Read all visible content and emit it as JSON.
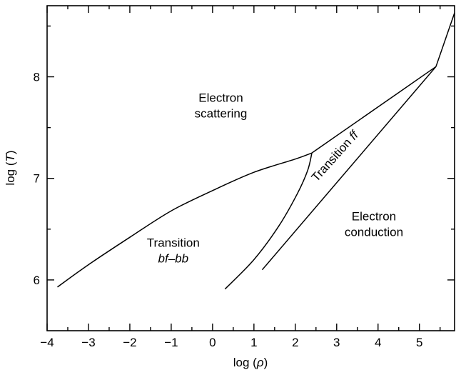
{
  "chart_data": {
    "type": "line",
    "title": "",
    "x_axis": {
      "label_prefix": "log (",
      "label_symbol": "ρ",
      "label_suffix": ")",
      "range": [
        -4,
        5.85
      ],
      "ticks": [
        -4,
        -3,
        -2,
        -1,
        0,
        1,
        2,
        3,
        4,
        5
      ],
      "tick_labels": [
        "−4",
        "−3",
        "−2",
        "−1",
        "0",
        "1",
        "2",
        "3",
        "4",
        "5"
      ],
      "minor_ticks": [
        -3.5,
        -2.5,
        -1.5,
        -0.5,
        0.5,
        1.5,
        2.5,
        3.5,
        4.5,
        5.5
      ]
    },
    "y_axis": {
      "label_prefix": "log (",
      "label_symbol": "T",
      "label_suffix": ")",
      "range": [
        5.5,
        8.7
      ],
      "ticks": [
        6,
        7,
        8
      ],
      "tick_labels": [
        "6",
        "7",
        "8"
      ],
      "minor_ticks": [
        6.5,
        7.5,
        8.5
      ]
    },
    "grid": false,
    "series": [
      {
        "x": [
          -3.75,
          -3.0,
          -2.0,
          -1.0,
          0.0,
          1.0,
          2.0,
          2.4
        ],
        "y": [
          5.93,
          6.15,
          6.42,
          6.68,
          6.88,
          7.06,
          7.19,
          7.25
        ]
      },
      {
        "x": [
          2.4,
          5.4
        ],
        "y": [
          7.25,
          8.1
        ]
      },
      {
        "x": [
          5.4,
          5.85
        ],
        "y": [
          8.1,
          8.63
        ]
      },
      {
        "x": [
          0.3,
          1.0,
          1.6,
          2.05,
          2.3,
          2.4
        ],
        "y": [
          5.91,
          6.2,
          6.53,
          6.85,
          7.08,
          7.25
        ]
      },
      {
        "x": [
          1.2,
          5.4
        ],
        "y": [
          6.1,
          8.1
        ]
      }
    ],
    "annotations": [
      {
        "lines": [
          "Electron",
          "scattering"
        ],
        "x": 0.2,
        "y": 7.72,
        "rotation": 0
      },
      {
        "lines": [
          "Transition",
          "bf–bb"
        ],
        "italic_line": 1,
        "x": -0.95,
        "y": 6.29,
        "rotation": 0
      },
      {
        "lines": [
          "Electron",
          "conduction"
        ],
        "x": 3.9,
        "y": 6.55,
        "rotation": 0
      },
      {
        "lines": [
          "Transition ff"
        ],
        "x": 2.95,
        "y": 7.22,
        "rotation": -48
      }
    ]
  }
}
